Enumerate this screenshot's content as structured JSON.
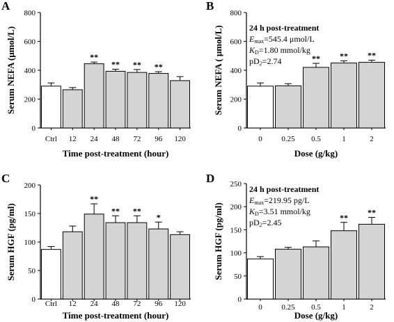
{
  "chart_data": [
    {
      "type": "bar",
      "panel": "A",
      "categories": [
        "Ctrl",
        "12",
        "24",
        "48",
        "72",
        "96",
        "120"
      ],
      "values": [
        290,
        265,
        445,
        393,
        385,
        378,
        328
      ],
      "errors": [
        22,
        15,
        12,
        14,
        20,
        12,
        28
      ],
      "significance": [
        "",
        "",
        "**",
        "**",
        "**",
        "**",
        ""
      ],
      "bar_colors": [
        "#ffffff",
        "#d4d4d4",
        "#d4d4d4",
        "#d4d4d4",
        "#d4d4d4",
        "#d4d4d4",
        "#d4d4d4"
      ],
      "xlabel": "Time post-treatment (hour)",
      "ylabel": "Serum NEFA (μmol/L)",
      "ylim": [
        0,
        800
      ],
      "yticks": [
        0,
        200,
        400,
        600,
        800
      ],
      "grid": false
    },
    {
      "type": "bar",
      "panel": "B",
      "categories": [
        "0",
        "0.25",
        "0.5",
        "1",
        "2"
      ],
      "values": [
        290,
        292,
        420,
        450,
        455
      ],
      "errors": [
        22,
        15,
        28,
        15,
        15
      ],
      "significance": [
        "",
        "",
        "**",
        "**",
        "**"
      ],
      "bar_colors": [
        "#ffffff",
        "#d4d4d4",
        "#d4d4d4",
        "#d4d4d4",
        "#d4d4d4"
      ],
      "xlabel": "Dose (g/kg)",
      "ylabel": "Serum NEFA ( μmol/L)",
      "ylim": [
        0,
        800
      ],
      "yticks": [
        0,
        200,
        400,
        600,
        800
      ],
      "grid": false,
      "annotation": {
        "heading": "24 h post-treatment",
        "emax_symbol": "E",
        "emax_sub": "max",
        "emax_value": "=545.4 μmol/L",
        "kd_symbol": "K",
        "kd_sub": "D",
        "kd_value": "=1.80 mmol/kg",
        "pd2_prefix": "pD",
        "pd2_sub": "2",
        "pd2_value": "=2.74"
      }
    },
    {
      "type": "bar",
      "panel": "C",
      "categories": [
        "Ctrl",
        "12",
        "24",
        "48",
        "72",
        "96",
        "120"
      ],
      "values": [
        87,
        118,
        149,
        134,
        134,
        123,
        113
      ],
      "errors": [
        5,
        10,
        18,
        12,
        12,
        12,
        5
      ],
      "significance": [
        "",
        "",
        "**",
        "**",
        "**",
        "*",
        ""
      ],
      "bar_colors": [
        "#ffffff",
        "#d4d4d4",
        "#d4d4d4",
        "#d4d4d4",
        "#d4d4d4",
        "#d4d4d4",
        "#d4d4d4"
      ],
      "xlabel": "Time post-treatment (hour)",
      "ylabel": "Serum HGF (pg/ml)",
      "ylim": [
        0,
        200
      ],
      "yticks": [
        0,
        50,
        100,
        150,
        200
      ],
      "grid": false
    },
    {
      "type": "bar",
      "panel": "D",
      "categories": [
        "0",
        "0.25",
        "0.5",
        "1",
        "2"
      ],
      "values": [
        87,
        108,
        113,
        148,
        162
      ],
      "errors": [
        5,
        4,
        13,
        18,
        15
      ],
      "significance": [
        "",
        "",
        "",
        "**",
        "**"
      ],
      "bar_colors": [
        "#ffffff",
        "#d4d4d4",
        "#d4d4d4",
        "#d4d4d4",
        "#d4d4d4"
      ],
      "xlabel": "Dose (g/kg)",
      "ylabel": "Serum HGF (pg/ml)",
      "ylim": [
        0,
        250
      ],
      "yticks": [
        0,
        50,
        100,
        150,
        200,
        250
      ],
      "grid": false,
      "annotation": {
        "heading": "24 h post-treatment",
        "emax_symbol": "E",
        "emax_sub": "max",
        "emax_value": "=219.95 pg/L",
        "kd_symbol": "K",
        "kd_sub": "D",
        "kd_value": "=3.51 mmol/kg",
        "pd2_prefix": "pD",
        "pd2_sub": "2",
        "pd2_value": "=2.45"
      }
    }
  ]
}
